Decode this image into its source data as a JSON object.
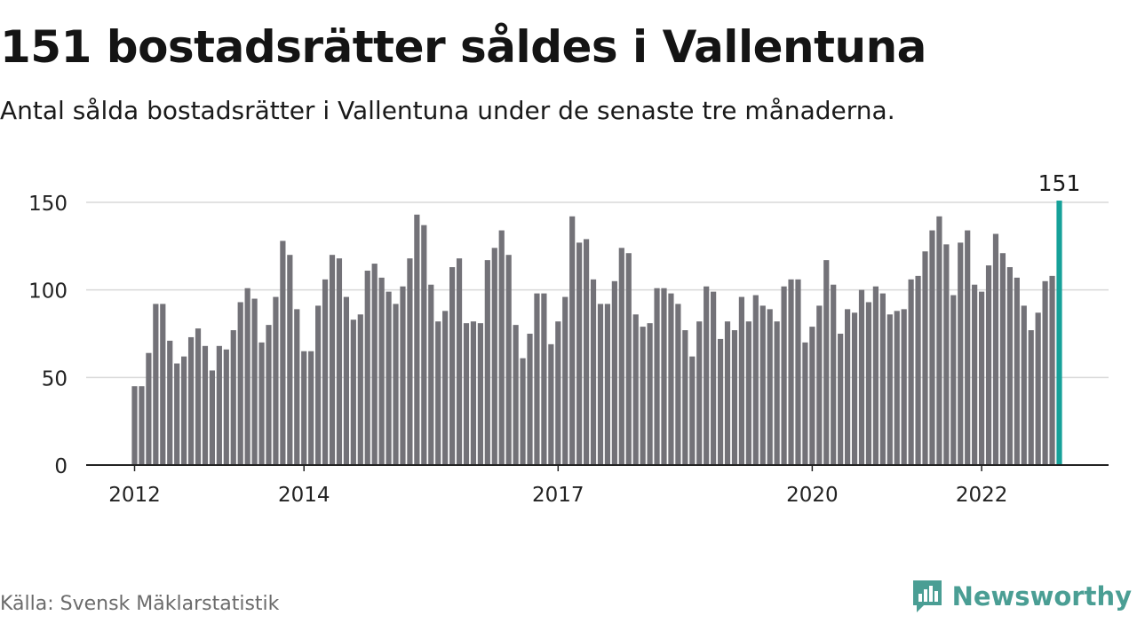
{
  "title": "151 bostadsrätter såldes i Vallentuna",
  "subtitle": "Antal sålda bostadsrätter i Vallentuna under de senaste tre månaderna.",
  "source": "Källa: Svensk Mäklarstatistik",
  "brand": {
    "name": "Newsworthy",
    "icon": "newsworthy-logo-icon"
  },
  "colors": {
    "bar": "#737278",
    "highlight": "#16a199",
    "grid": "#d9d9d9",
    "axis": "#222222"
  },
  "chart_data": {
    "type": "bar",
    "ylim": [
      0,
      150
    ],
    "yticks": [
      0,
      50,
      100,
      150
    ],
    "xtick_labels": [
      {
        "label": "2012",
        "index": 0
      },
      {
        "label": "2014",
        "index": 24
      },
      {
        "label": "2017",
        "index": 60
      },
      {
        "label": "2020",
        "index": 96
      },
      {
        "label": "2022",
        "index": 120
      }
    ],
    "grid": true,
    "values": [
      45,
      45,
      64,
      92,
      92,
      71,
      58,
      62,
      73,
      78,
      68,
      54,
      68,
      66,
      77,
      93,
      101,
      95,
      70,
      80,
      96,
      128,
      120,
      89,
      65,
      65,
      91,
      106,
      120,
      118,
      96,
      83,
      86,
      111,
      115,
      107,
      99,
      92,
      102,
      118,
      143,
      137,
      103,
      82,
      88,
      113,
      118,
      81,
      82,
      81,
      117,
      124,
      134,
      120,
      80,
      61,
      75,
      98,
      98,
      69,
      82,
      96,
      142,
      127,
      129,
      106,
      92,
      92,
      105,
      124,
      121,
      86,
      79,
      81,
      101,
      101,
      98,
      92,
      77,
      62,
      82,
      102,
      99,
      72,
      82,
      77,
      96,
      82,
      97,
      91,
      89,
      82,
      102,
      106,
      106,
      70,
      79,
      91,
      117,
      103,
      75,
      89,
      87,
      100,
      93,
      102,
      98,
      86,
      88,
      89,
      106,
      108,
      122,
      134,
      142,
      126,
      97,
      127,
      134,
      103,
      99,
      114,
      132,
      121,
      113,
      107,
      91,
      77,
      87,
      105,
      108,
      151
    ],
    "highlight_index": 131,
    "highlight_label": "151"
  }
}
